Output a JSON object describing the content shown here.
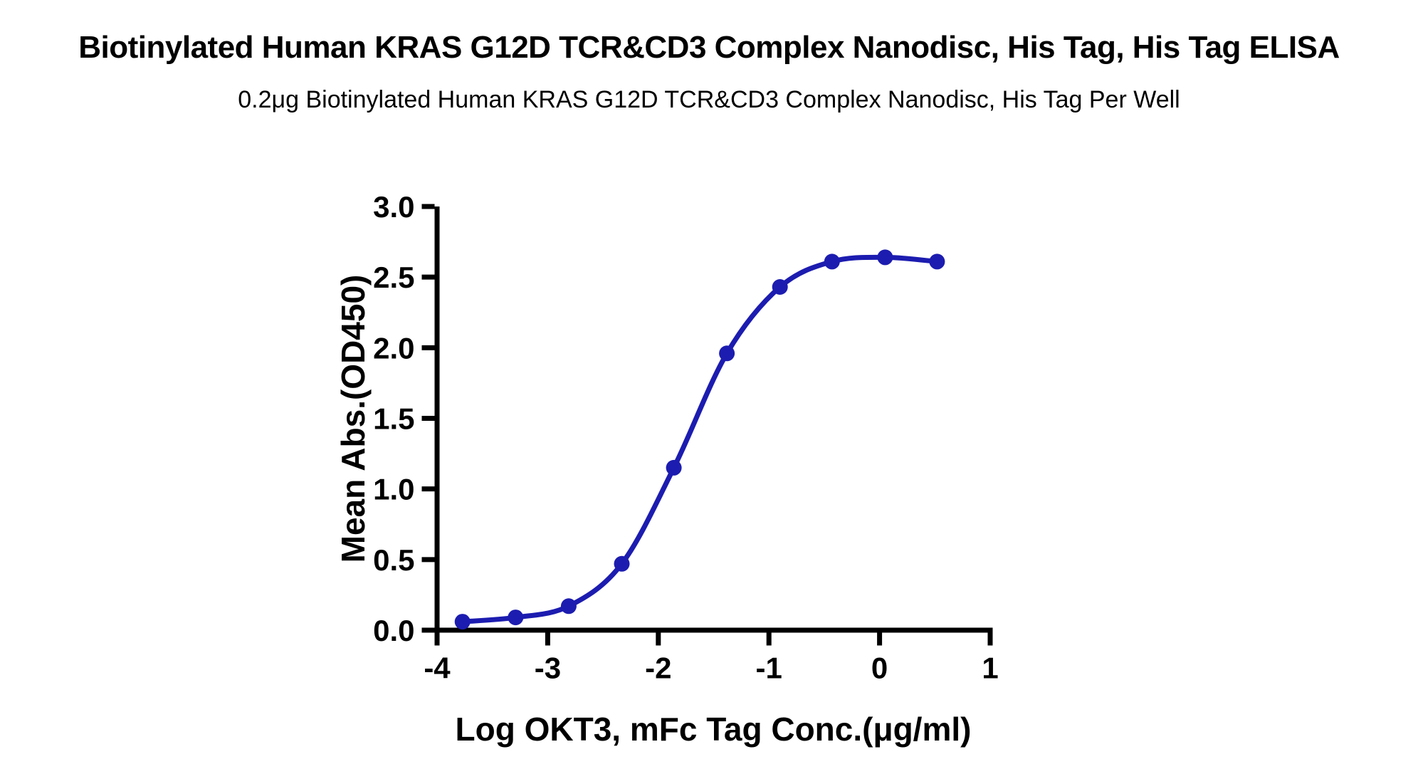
{
  "chart_data": {
    "type": "line",
    "title": "Biotinylated Human KRAS G12D TCR&CD3 Complex Nanodisc, His Tag, His Tag ELISA",
    "subtitle": "0.2μg Biotinylated Human KRAS G12D TCR&CD3 Complex Nanodisc, His Tag Per Well",
    "xlabel": "Log OKT3, mFc Tag Conc.(μg/ml)",
    "ylabel": "Mean Abs.(OD450)",
    "xlim": [
      -4,
      1
    ],
    "ylim": [
      0,
      3
    ],
    "x_tick_values": [
      -4,
      -3,
      -2,
      -1,
      0,
      1
    ],
    "x_tick_labels": [
      "-4",
      "-3",
      "-2",
      "-1",
      "0",
      "1"
    ],
    "y_tick_values": [
      0,
      0.5,
      1,
      1.5,
      2,
      2.5,
      3
    ],
    "y_tick_labels": [
      "0.0",
      "0.5",
      "1.0",
      "1.5",
      "2.0",
      "2.5",
      "3.0"
    ],
    "grid": false,
    "legend": "none",
    "line_color": "#1c1cb0",
    "text_color": "#000000",
    "marker": "circle",
    "series": [
      {
        "name": "OKT3, mFc Tag",
        "x": [
          -3.77,
          -3.29,
          -2.81,
          -2.33,
          -1.86,
          -1.38,
          -0.9,
          -0.43,
          0.05,
          0.52
        ],
        "y": [
          0.06,
          0.09,
          0.17,
          0.47,
          1.15,
          1.96,
          2.43,
          2.61,
          2.64,
          2.61
        ]
      }
    ]
  }
}
